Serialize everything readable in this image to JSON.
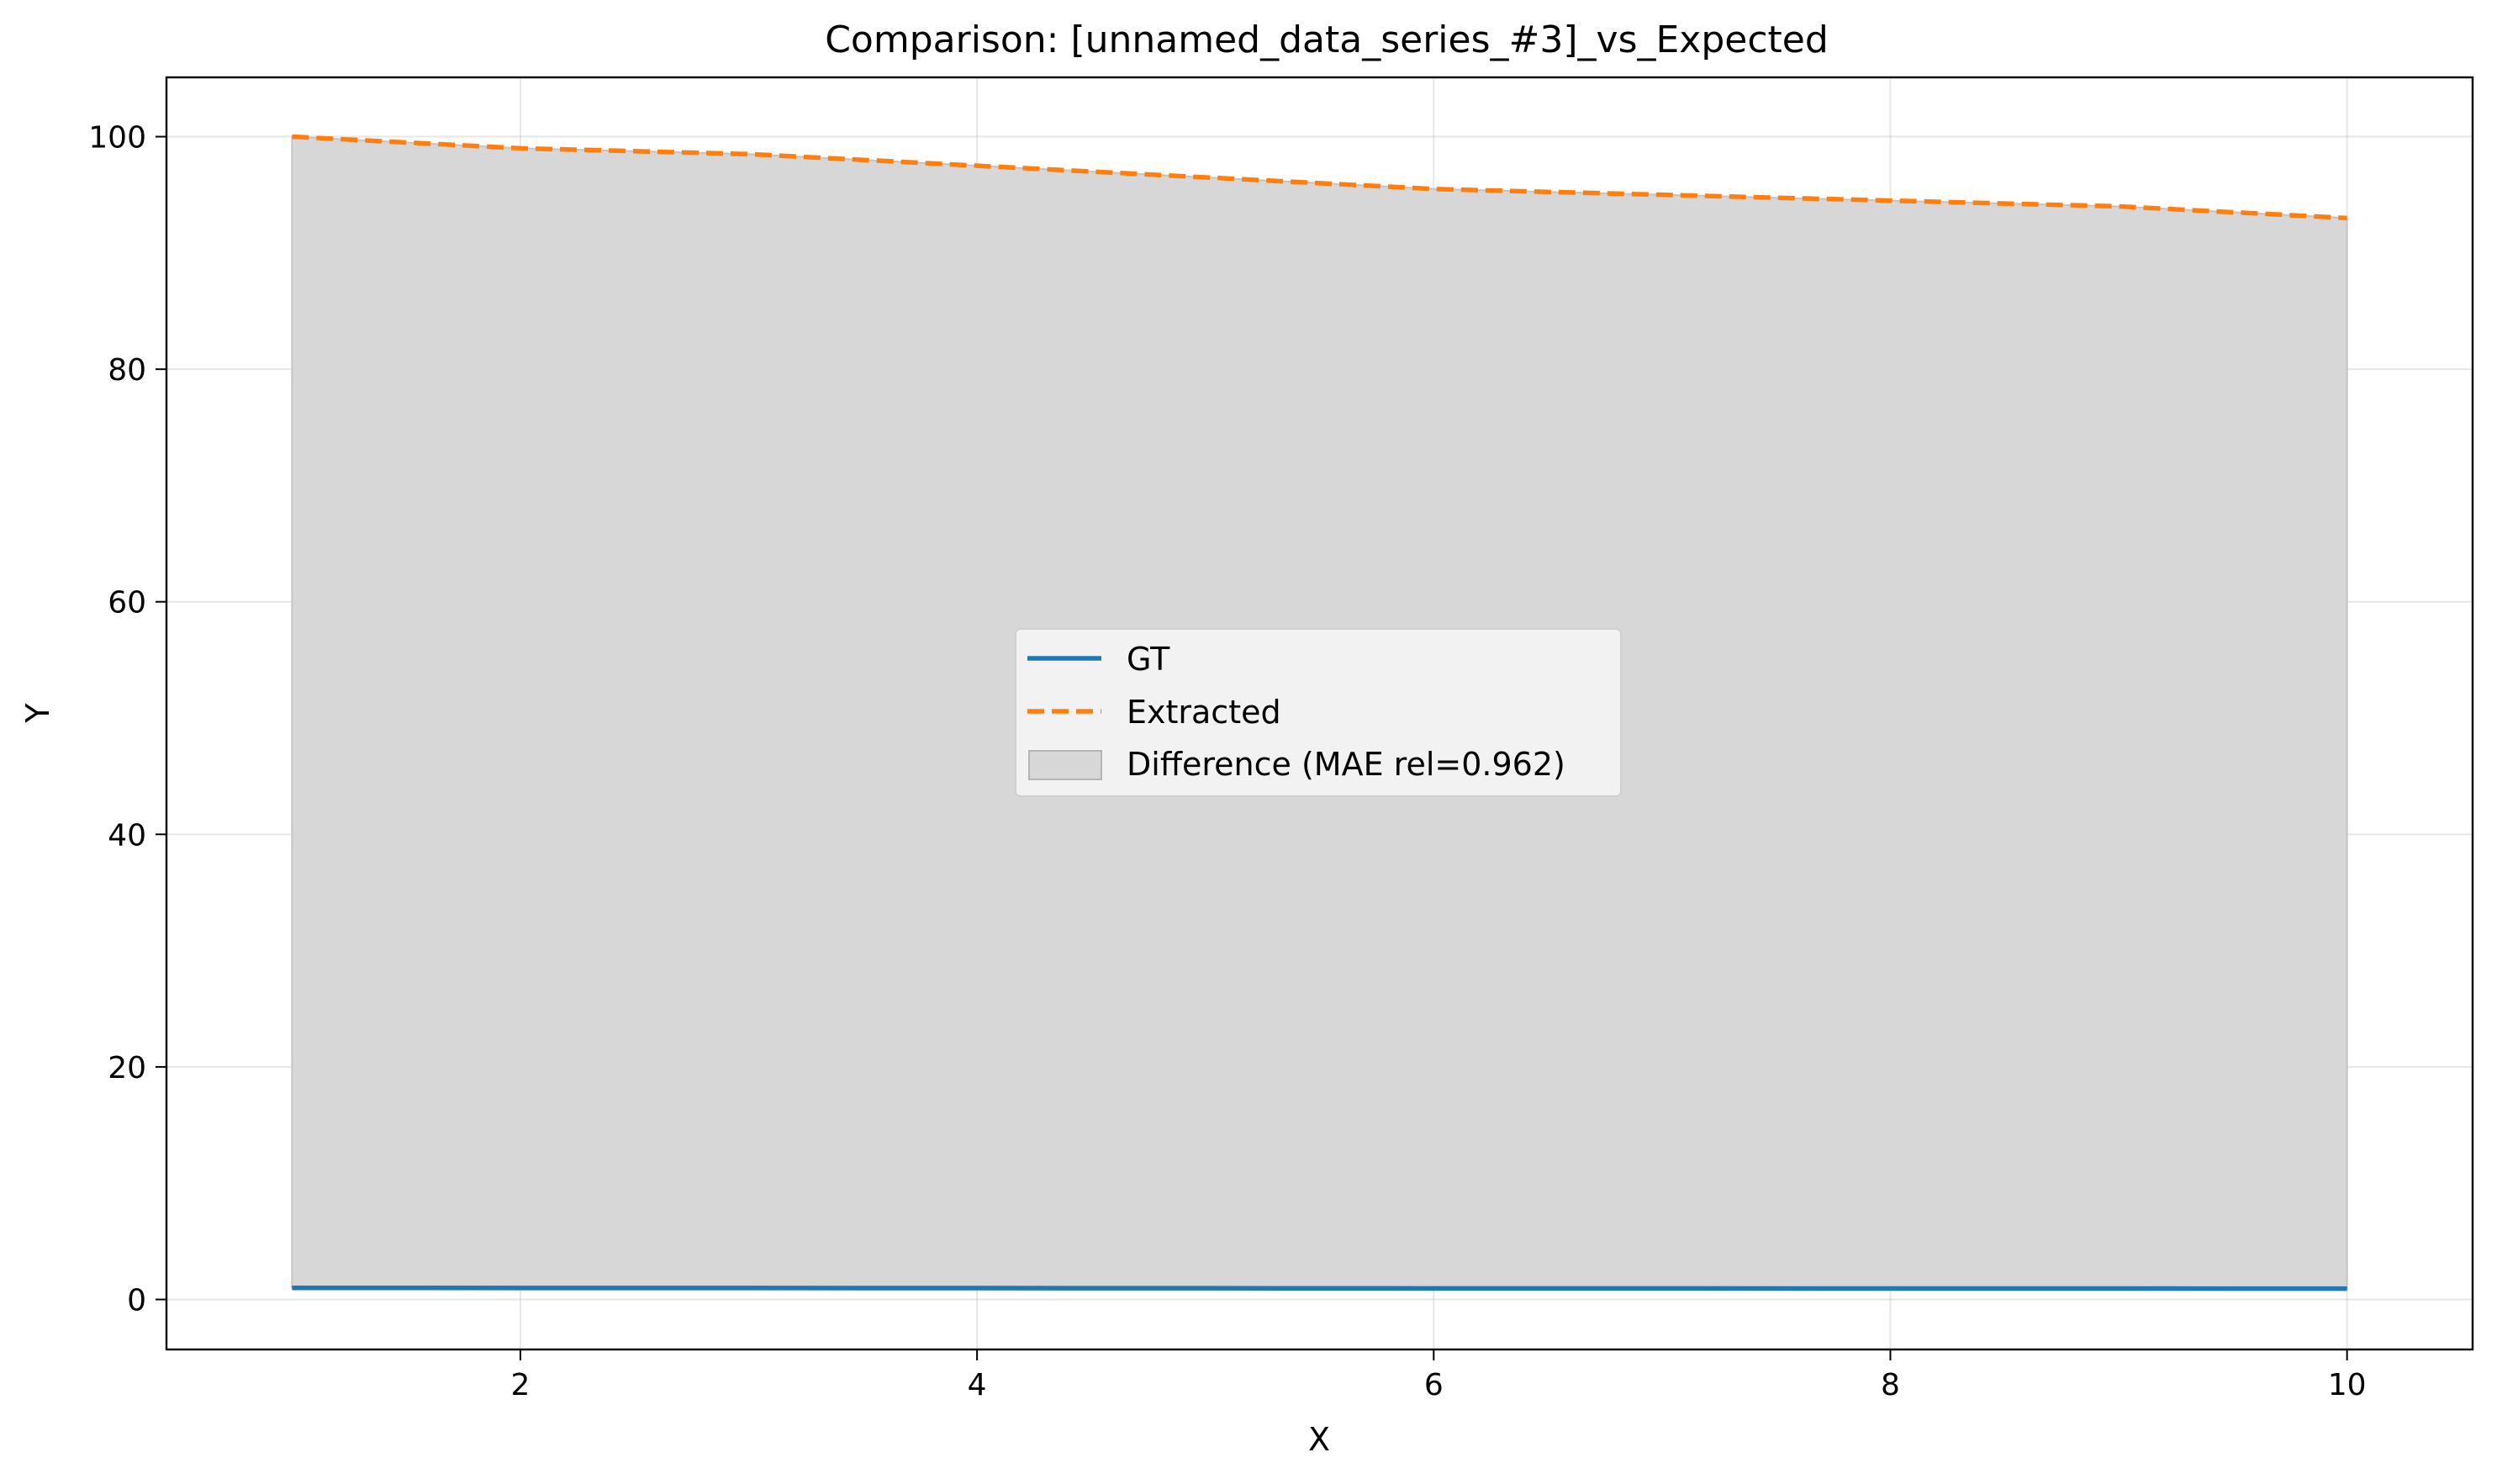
{
  "chart_data": {
    "type": "line",
    "title": "Comparison: [unnamed_data_series_#3]_vs_Expected",
    "xlabel": "X",
    "ylabel": "Y",
    "xlim": [
      0.45,
      10.55
    ],
    "ylim": [
      -4.3,
      105.1
    ],
    "xticks": [
      2,
      4,
      6,
      8,
      10
    ],
    "yticks": [
      0,
      20,
      40,
      60,
      80,
      100
    ],
    "grid": true,
    "legend_position": "center",
    "x": [
      1,
      2,
      3,
      4,
      5,
      6,
      7,
      8,
      9,
      10
    ],
    "series": [
      {
        "name": "GT",
        "style": "solid",
        "color": "#1f77b4",
        "values": [
          1.0,
          0.99,
          0.985,
          0.975,
          0.965,
          0.955,
          0.95,
          0.945,
          0.94,
          0.93
        ]
      },
      {
        "name": "Extracted",
        "style": "dashed",
        "color": "#ff7f0e",
        "values": [
          100.0,
          99.0,
          98.5,
          97.5,
          96.5,
          95.5,
          95.0,
          94.5,
          94.0,
          93.0
        ]
      }
    ],
    "fill_between": {
      "name": "Difference (MAE rel=0.962)",
      "color": "#d7d7d7",
      "between": [
        "GT",
        "Extracted"
      ]
    }
  }
}
